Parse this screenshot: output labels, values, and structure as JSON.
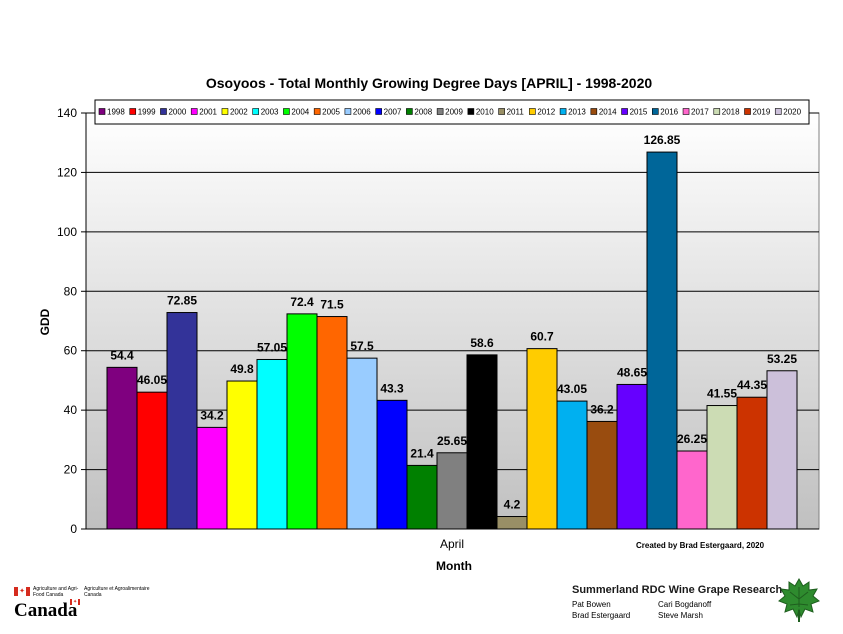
{
  "chart_data": {
    "type": "bar",
    "title": "Osoyoos - Total Monthly Growing Degree Days [APRIL] - 1998-2020",
    "xlabel": "Month",
    "ylabel": "GDD",
    "categories": [
      "April"
    ],
    "ylim": [
      0,
      140
    ],
    "yticks": [
      0,
      20,
      40,
      60,
      80,
      100,
      120,
      140
    ],
    "grid": true,
    "legend_position": "top",
    "series": [
      {
        "name": "1998",
        "values": [
          54.4
        ],
        "label": "54.4",
        "color": "#7f007f"
      },
      {
        "name": "1999",
        "values": [
          46.05
        ],
        "label": "46.05",
        "color": "#ff0000"
      },
      {
        "name": "2000",
        "values": [
          72.85
        ],
        "label": "72.85",
        "color": "#333399"
      },
      {
        "name": "2001",
        "values": [
          34.2
        ],
        "label": "34.2",
        "color": "#ff00ff"
      },
      {
        "name": "2002",
        "values": [
          49.8
        ],
        "label": "49.8",
        "color": "#ffff00"
      },
      {
        "name": "2003",
        "values": [
          57.05
        ],
        "label": "57.05",
        "color": "#00ffff"
      },
      {
        "name": "2004",
        "values": [
          72.4
        ],
        "label": "72.4",
        "color": "#00ff00"
      },
      {
        "name": "2005",
        "values": [
          71.5
        ],
        "label": "71.5",
        "color": "#ff6600"
      },
      {
        "name": "2006",
        "values": [
          57.5
        ],
        "label": "57.5",
        "color": "#99ccff"
      },
      {
        "name": "2007",
        "values": [
          43.3
        ],
        "label": "43.3",
        "color": "#0000ff"
      },
      {
        "name": "2008",
        "values": [
          21.4
        ],
        "label": "21.4",
        "color": "#008000"
      },
      {
        "name": "2009",
        "values": [
          25.65
        ],
        "label": "25.65",
        "color": "#808080"
      },
      {
        "name": "2010",
        "values": [
          58.6
        ],
        "label": "58.6",
        "color": "#000000"
      },
      {
        "name": "2011",
        "values": [
          4.2
        ],
        "label": "4.2",
        "color": "#998f66"
      },
      {
        "name": "2012",
        "values": [
          60.7
        ],
        "label": "60.7",
        "color": "#ffcc00"
      },
      {
        "name": "2013",
        "values": [
          43.05
        ],
        "label": "43.05",
        "color": "#00b0f0"
      },
      {
        "name": "2014",
        "values": [
          36.2
        ],
        "label": "36.2",
        "color": "#994c0f"
      },
      {
        "name": "2015",
        "values": [
          48.65
        ],
        "label": "48.65",
        "color": "#6600ff"
      },
      {
        "name": "2016",
        "values": [
          126.85
        ],
        "label": "126.85",
        "color": "#006699"
      },
      {
        "name": "2017",
        "values": [
          26.25
        ],
        "label": "26.25",
        "color": "#ff66cc"
      },
      {
        "name": "2018",
        "values": [
          41.55
        ],
        "label": "41.55",
        "color": "#ccdcb4"
      },
      {
        "name": "2019",
        "values": [
          44.35
        ],
        "label": "44.35",
        "color": "#cc3300"
      },
      {
        "name": "2020",
        "values": [
          53.25
        ],
        "label": "53.25",
        "color": "#ccc0da"
      }
    ],
    "annotation": "Created by Brad Estergaard, 2020"
  },
  "footer": {
    "aafc_en": "Agriculture and Agri-Food Canada",
    "aafc_fr": "Agriculture et Agroalimentaire Canada",
    "wordmark": "Canada",
    "research_title": "Summerland RDC Wine Grape Research",
    "people": [
      "Pat Bowen",
      "Cari Bogdanoff",
      "Brad Estergaard",
      "Steve Marsh"
    ]
  },
  "colors": {
    "plot_bg_top": "#ffffff",
    "plot_bg_bottom": "#c0c0c0",
    "leaf_green": "#2e8b2e",
    "flag_red": "#d52b1e"
  },
  "icons": [
    "canada-flag-icon",
    "grape-leaf-icon"
  ]
}
